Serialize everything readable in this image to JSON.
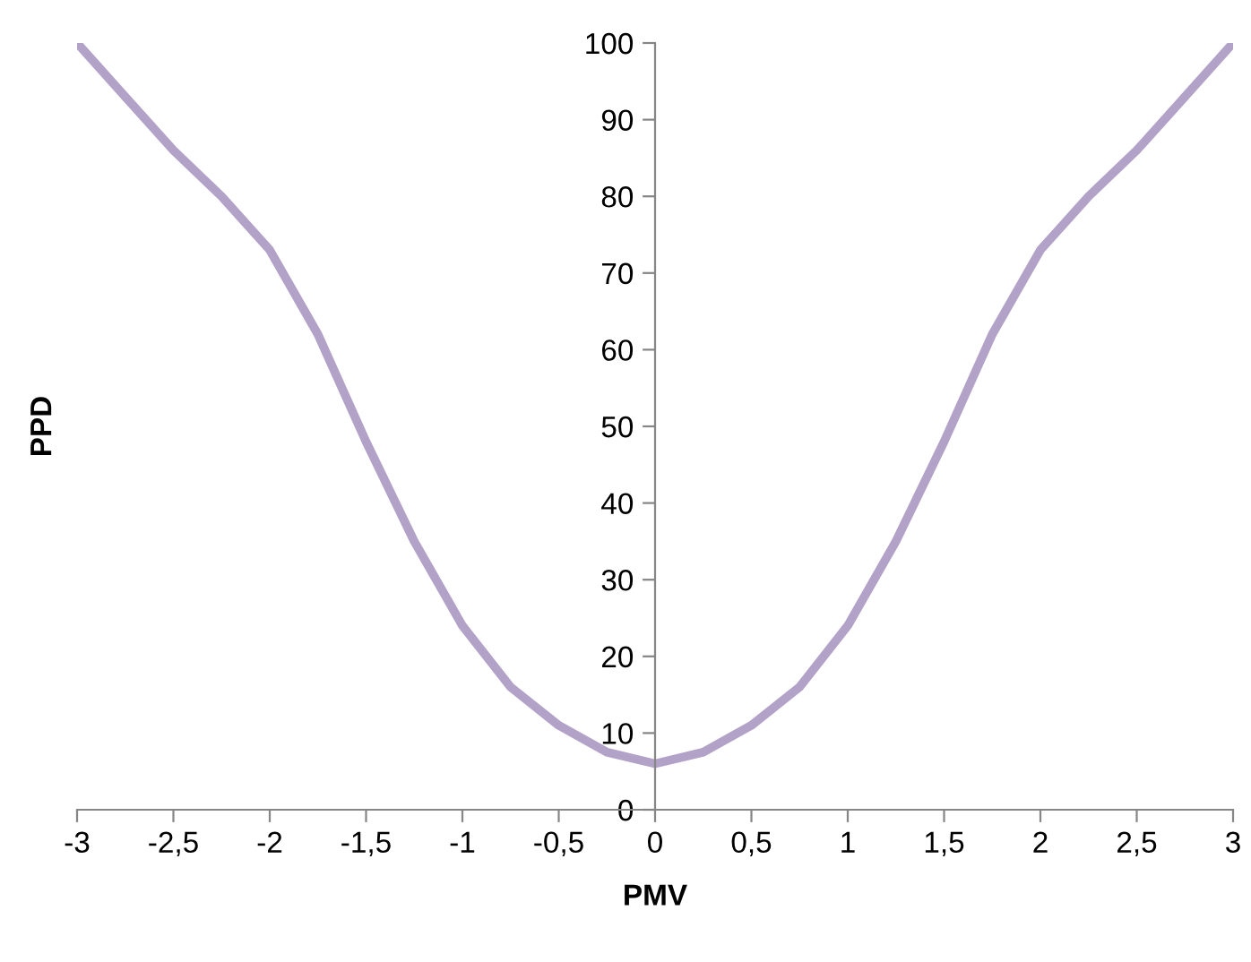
{
  "chart_data": {
    "type": "line",
    "xlabel": "PMV",
    "ylabel": "PPD",
    "x": [
      -3,
      -2.75,
      -2.5,
      -2.25,
      -2,
      -1.75,
      -1.5,
      -1.25,
      -1,
      -0.75,
      -0.5,
      -0.25,
      0,
      0.25,
      0.5,
      0.75,
      1,
      1.25,
      1.5,
      1.75,
      2,
      2.25,
      2.5,
      2.75,
      3
    ],
    "series": [
      {
        "color": "#b3a2c7",
        "values": [
          100,
          93,
          86,
          80,
          73,
          62,
          48,
          35,
          24,
          16,
          11,
          7.5,
          6,
          7.5,
          11,
          16,
          24,
          35,
          48,
          62,
          73,
          80,
          86,
          93,
          100
        ]
      }
    ],
    "xlim": [
      -3,
      3
    ],
    "ylim": [
      0,
      100
    ],
    "xticks": [
      -3,
      {
        "value": -2.5,
        "label": "-2,5"
      },
      -2,
      {
        "value": -1.5,
        "label": "-1,5"
      },
      -1,
      {
        "value": -0.5,
        "label": "-0,5"
      },
      0,
      {
        "value": 0.5,
        "label": "0,5"
      },
      1,
      {
        "value": 1.5,
        "label": "1,5"
      },
      2,
      {
        "value": 2.5,
        "label": "2,5"
      },
      3
    ],
    "yticks": [
      0,
      10,
      20,
      30,
      40,
      50,
      60,
      70,
      80,
      90,
      100
    ],
    "grid": false,
    "legend": false,
    "marker": "none",
    "line_style": "solid"
  }
}
